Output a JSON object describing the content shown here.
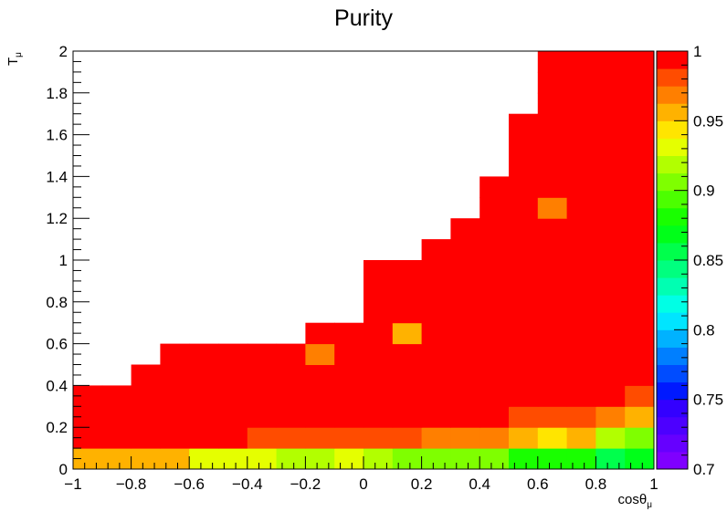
{
  "chart_data": {
    "type": "heatmap",
    "title": "Purity",
    "xlabel": {
      "base": "cosθ",
      "sub": "μ"
    },
    "ylabel": {
      "base": "T",
      "sub": "μ"
    },
    "xlim": [
      -1,
      1
    ],
    "ylim": [
      0,
      2
    ],
    "zlim": [
      0.7,
      1
    ],
    "x_ticks": [
      -1,
      -0.8,
      -0.6,
      -0.4,
      -0.2,
      0,
      0.2,
      0.4,
      0.6,
      0.8,
      1
    ],
    "x_tick_labels": [
      "−1",
      "−0.8",
      "−0.6",
      "−0.4",
      "−0.2",
      "0",
      "0.2",
      "0.4",
      "0.6",
      "0.8",
      "1"
    ],
    "y_ticks": [
      0,
      0.2,
      0.4,
      0.6,
      0.8,
      1,
      1.2,
      1.4,
      1.6,
      1.8,
      2
    ],
    "y_tick_labels": [
      "0",
      "0.2",
      "0.4",
      "0.6",
      "0.8",
      "1",
      "1.2",
      "1.4",
      "1.6",
      "1.8",
      "2"
    ],
    "z_ticks": [
      0.7,
      0.75,
      0.8,
      0.85,
      0.9,
      0.95,
      1
    ],
    "z_tick_labels": [
      "0.7",
      "0.75",
      "0.8",
      "0.85",
      "0.9",
      "0.95",
      "1"
    ],
    "x_edges": [
      -1,
      -0.9,
      -0.8,
      -0.7,
      -0.6,
      -0.5,
      -0.4,
      -0.3,
      -0.2,
      -0.1,
      0,
      0.1,
      0.2,
      0.3,
      0.4,
      0.5,
      0.6,
      0.7,
      0.8,
      0.9,
      1
    ],
    "y_edges": [
      0,
      0.1,
      0.2,
      0.3,
      0.4,
      0.5,
      0.6,
      0.7,
      0.8,
      0.9,
      1,
      1.1,
      1.2,
      1.3,
      1.4,
      1.5,
      1.6,
      1.7,
      1.8,
      1.9,
      2
    ],
    "z": [
      [
        0.95,
        0.96,
        0.95,
        0.95,
        0.93,
        0.93,
        0.93,
        0.92,
        0.92,
        0.93,
        0.92,
        0.91,
        0.9,
        0.9,
        0.9,
        0.88,
        0.88,
        0.88,
        0.85,
        0.87
      ],
      [
        0.99,
        0.99,
        0.99,
        0.99,
        0.99,
        0.99,
        0.98,
        0.98,
        0.98,
        0.98,
        0.98,
        0.98,
        0.97,
        0.97,
        0.97,
        0.95,
        0.94,
        0.95,
        0.92,
        0.9
      ],
      [
        0.99,
        0.99,
        0.99,
        0.99,
        0.99,
        0.99,
        0.99,
        0.99,
        0.99,
        0.99,
        0.99,
        0.99,
        0.99,
        0.99,
        0.99,
        0.98,
        0.98,
        0.98,
        0.97,
        0.95
      ],
      [
        0.99,
        0.99,
        0.99,
        0.99,
        0.99,
        0.99,
        0.99,
        0.99,
        0.99,
        0.99,
        0.99,
        0.99,
        0.99,
        0.99,
        0.99,
        0.99,
        0.99,
        0.99,
        0.99,
        0.98
      ],
      [
        null,
        null,
        0.99,
        0.99,
        0.99,
        0.99,
        0.99,
        0.99,
        0.99,
        0.99,
        0.99,
        0.99,
        0.99,
        0.99,
        0.99,
        0.99,
        0.99,
        0.99,
        0.99,
        0.99
      ],
      [
        null,
        null,
        null,
        0.99,
        0.99,
        0.99,
        0.99,
        0.99,
        0.97,
        0.99,
        0.99,
        0.99,
        0.99,
        0.99,
        0.99,
        0.99,
        0.99,
        0.99,
        0.99,
        0.99
      ],
      [
        null,
        null,
        null,
        null,
        null,
        null,
        null,
        null,
        0.99,
        0.99,
        0.99,
        0.95,
        0.99,
        0.99,
        0.99,
        0.99,
        0.99,
        0.99,
        0.99,
        0.99
      ],
      [
        null,
        null,
        null,
        null,
        null,
        null,
        null,
        null,
        null,
        null,
        0.99,
        0.99,
        0.99,
        0.99,
        0.99,
        0.99,
        0.99,
        0.99,
        0.99,
        0.99
      ],
      [
        null,
        null,
        null,
        null,
        null,
        null,
        null,
        null,
        null,
        null,
        0.99,
        0.99,
        0.99,
        0.99,
        0.99,
        0.99,
        0.99,
        0.99,
        0.99,
        0.99
      ],
      [
        null,
        null,
        null,
        null,
        null,
        null,
        null,
        null,
        null,
        null,
        0.99,
        0.99,
        0.99,
        0.99,
        0.99,
        0.99,
        0.99,
        0.99,
        0.99,
        0.99
      ],
      [
        null,
        null,
        null,
        null,
        null,
        null,
        null,
        null,
        null,
        null,
        null,
        null,
        0.99,
        0.99,
        0.99,
        0.99,
        0.99,
        0.99,
        0.99,
        0.99
      ],
      [
        null,
        null,
        null,
        null,
        null,
        null,
        null,
        null,
        null,
        null,
        null,
        null,
        null,
        0.99,
        0.99,
        0.99,
        0.99,
        0.99,
        0.99,
        0.99
      ],
      [
        null,
        null,
        null,
        null,
        null,
        null,
        null,
        null,
        null,
        null,
        null,
        null,
        null,
        null,
        0.99,
        0.99,
        0.97,
        0.99,
        0.99,
        0.99
      ],
      [
        null,
        null,
        null,
        null,
        null,
        null,
        null,
        null,
        null,
        null,
        null,
        null,
        null,
        null,
        0.99,
        0.99,
        0.99,
        0.99,
        0.99,
        0.99
      ],
      [
        null,
        null,
        null,
        null,
        null,
        null,
        null,
        null,
        null,
        null,
        null,
        null,
        null,
        null,
        null,
        0.99,
        0.99,
        0.99,
        0.99,
        0.99
      ],
      [
        null,
        null,
        null,
        null,
        null,
        null,
        null,
        null,
        null,
        null,
        null,
        null,
        null,
        null,
        null,
        0.99,
        0.99,
        0.99,
        0.99,
        0.99
      ],
      [
        null,
        null,
        null,
        null,
        null,
        null,
        null,
        null,
        null,
        null,
        null,
        null,
        null,
        null,
        null,
        0.99,
        0.99,
        0.99,
        0.99,
        0.99
      ],
      [
        null,
        null,
        null,
        null,
        null,
        null,
        null,
        null,
        null,
        null,
        null,
        null,
        null,
        null,
        null,
        null,
        0.99,
        0.99,
        0.99,
        0.99
      ],
      [
        null,
        null,
        null,
        null,
        null,
        null,
        null,
        null,
        null,
        null,
        null,
        null,
        null,
        null,
        null,
        null,
        0.99,
        0.99,
        0.99,
        0.99
      ],
      [
        null,
        null,
        null,
        null,
        null,
        null,
        null,
        null,
        null,
        null,
        null,
        null,
        null,
        null,
        null,
        null,
        0.99,
        0.99,
        0.99,
        0.99
      ]
    ],
    "palette": [
      "#7f00ff",
      "#6600ff",
      "#4c00ff",
      "#3300ff",
      "#0019ff",
      "#004cff",
      "#007fff",
      "#00b2ff",
      "#00e5ff",
      "#00ffe5",
      "#00ffb2",
      "#00ff7f",
      "#00ff4c",
      "#00ff19",
      "#19ff00",
      "#4cff00",
      "#7fff00",
      "#b2ff00",
      "#e5ff00",
      "#ffe500",
      "#ffb200",
      "#ff7f00",
      "#ff4c00",
      "#ff0000"
    ],
    "grid": false,
    "legend": "colorbar-right"
  }
}
